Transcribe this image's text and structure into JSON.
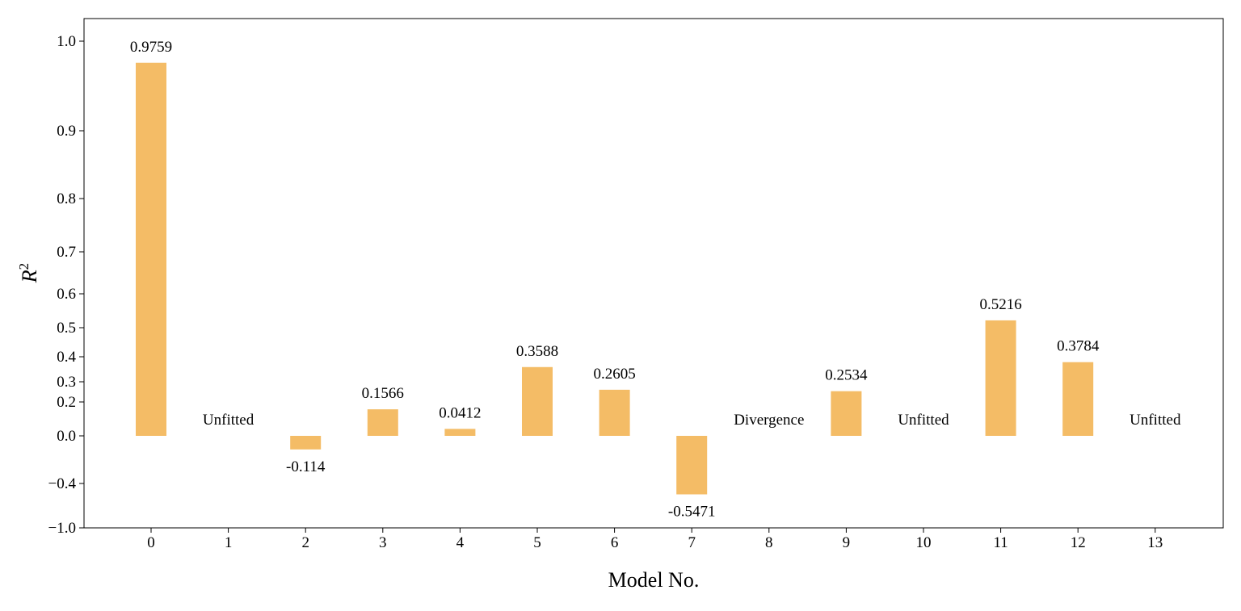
{
  "chart_data": {
    "type": "bar",
    "xlabel": "Model No.",
    "ylabel_base": "R",
    "ylabel_sup": "2",
    "bar_color": "#f4bc66",
    "categories": [
      "0",
      "1",
      "2",
      "3",
      "4",
      "5",
      "6",
      "7",
      "8",
      "9",
      "10",
      "11",
      "12",
      "13"
    ],
    "values": [
      0.9759,
      null,
      -0.114,
      0.1566,
      0.0412,
      0.3588,
      0.2605,
      -0.5471,
      null,
      0.2534,
      null,
      0.5216,
      0.3784,
      null
    ],
    "labels": [
      "0.9759",
      "Unfitted",
      "-0.114",
      "0.1566",
      "0.0412",
      "0.3588",
      "0.2605",
      "-0.5471",
      "Divergence",
      "0.2534",
      "Unfitted",
      "0.5216",
      "0.3784",
      "Unfitted"
    ],
    "yticks": [
      {
        "value": -1.0,
        "label": "−1.0"
      },
      {
        "value": -0.4,
        "label": "−0.4"
      },
      {
        "value": 0.0,
        "label": "0.0"
      },
      {
        "value": 0.2,
        "label": "0.2"
      },
      {
        "value": 0.3,
        "label": "0.3"
      },
      {
        "value": 0.4,
        "label": "0.4"
      },
      {
        "value": 0.5,
        "label": "0.5"
      },
      {
        "value": 0.6,
        "label": "0.6"
      },
      {
        "value": 0.7,
        "label": "0.7"
      },
      {
        "value": 0.8,
        "label": "0.8"
      },
      {
        "value": 0.9,
        "label": "0.9"
      },
      {
        "value": 1.0,
        "label": "1.0"
      }
    ],
    "ylim": [
      -1.0,
      1.05
    ],
    "grid": false,
    "legend": "none"
  }
}
